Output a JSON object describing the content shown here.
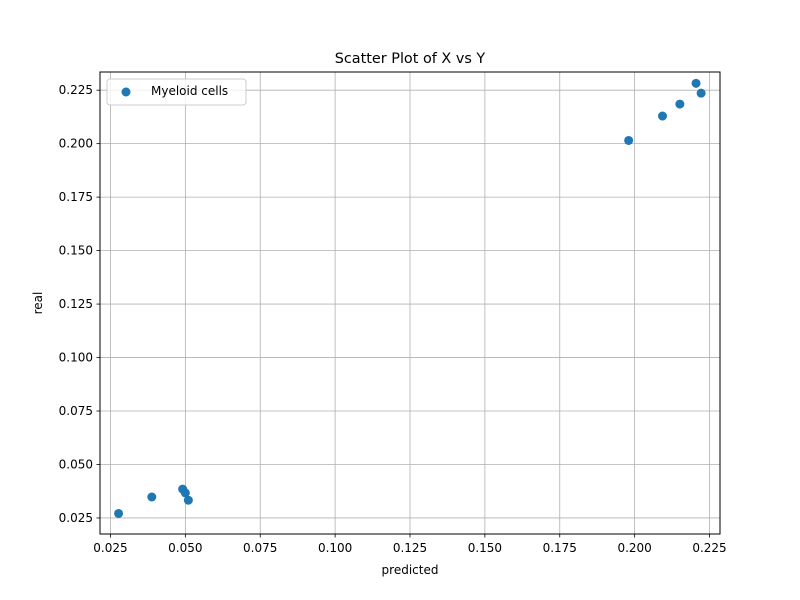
{
  "chart_data": {
    "type": "scatter",
    "title": "Scatter Plot of X vs Y",
    "xlabel": "predicted",
    "ylabel": "real",
    "xlim": [
      0.0215,
      0.2285
    ],
    "ylim": [
      0.0175,
      0.2335
    ],
    "xticks": [
      0.025,
      0.05,
      0.075,
      0.1,
      0.125,
      0.15,
      0.175,
      0.2,
      0.225
    ],
    "xtick_labels": [
      "0.025",
      "0.050",
      "0.075",
      "0.100",
      "0.125",
      "0.150",
      "0.175",
      "0.200",
      "0.225"
    ],
    "yticks": [
      0.025,
      0.05,
      0.075,
      0.1,
      0.125,
      0.15,
      0.175,
      0.2,
      0.225
    ],
    "ytick_labels": [
      "0.025",
      "0.050",
      "0.075",
      "0.100",
      "0.125",
      "0.150",
      "0.175",
      "0.200",
      "0.225"
    ],
    "grid": true,
    "legend_position": "upper-left",
    "series": [
      {
        "name": "Myeloid cells",
        "color": "#1f77b4",
        "points": [
          {
            "x": 0.0277,
            "y": 0.0271
          },
          {
            "x": 0.0388,
            "y": 0.0348
          },
          {
            "x": 0.0491,
            "y": 0.0385
          },
          {
            "x": 0.05,
            "y": 0.0367
          },
          {
            "x": 0.051,
            "y": 0.0333
          },
          {
            "x": 0.198,
            "y": 0.2015
          },
          {
            "x": 0.2093,
            "y": 0.2129
          },
          {
            "x": 0.2151,
            "y": 0.2185
          },
          {
            "x": 0.2205,
            "y": 0.2282
          },
          {
            "x": 0.2222,
            "y": 0.2236
          }
        ]
      }
    ]
  }
}
